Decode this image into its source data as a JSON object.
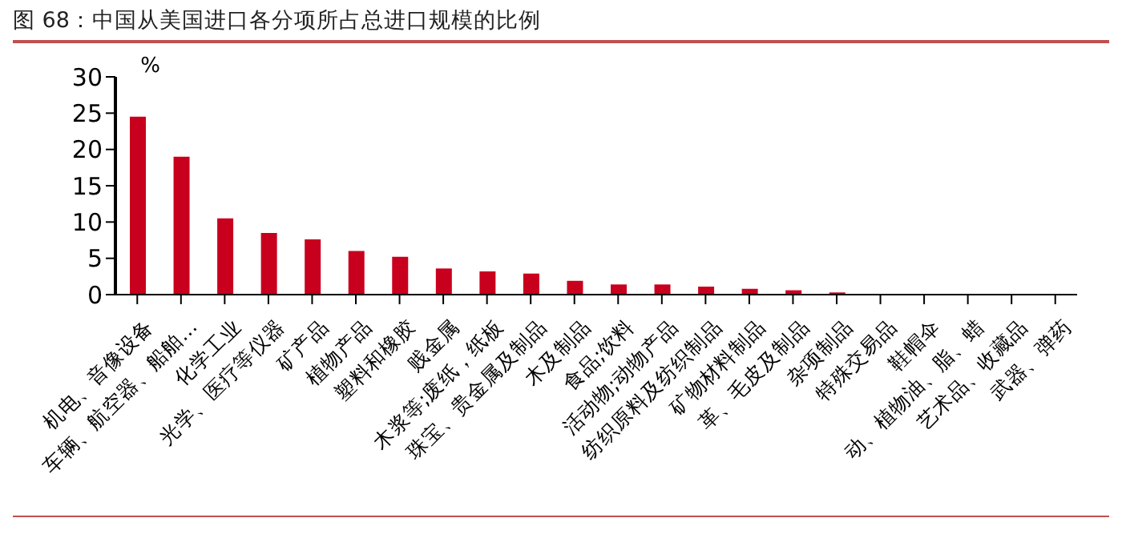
{
  "chart_data": {
    "type": "bar",
    "title": "图 68：中国从美国进口各分项所占总进口规模的比例",
    "ylabel": "%",
    "categories": [
      "机电、音像设备",
      "车辆、航空器、船舶…",
      "化学工业",
      "光学、医疗等仪器",
      "矿产品",
      "植物产品",
      "塑料和橡胶",
      "贱金属",
      "木浆等;废纸，纸板",
      "珠宝、贵金属及制品",
      "木及制品",
      "食品;饮料",
      "活动物;动物产品",
      "纺织原料及纺织制品",
      "矿物材料制品",
      "革、毛皮及制品",
      "杂项制品",
      "特殊交易品",
      "鞋帽伞",
      "动、植物油、脂、蜡",
      "艺术品、收藏品",
      "武器、弹药"
    ],
    "values": [
      24.5,
      19.0,
      10.5,
      8.5,
      7.6,
      6.0,
      5.2,
      3.6,
      3.2,
      2.9,
      1.9,
      1.4,
      1.4,
      1.1,
      0.8,
      0.6,
      0.3,
      0,
      0,
      0,
      0,
      0
    ],
    "color": "#c8001e",
    "ylim": [
      0,
      30
    ],
    "yticks": [
      0,
      5,
      10,
      15,
      20,
      25,
      30
    ]
  }
}
